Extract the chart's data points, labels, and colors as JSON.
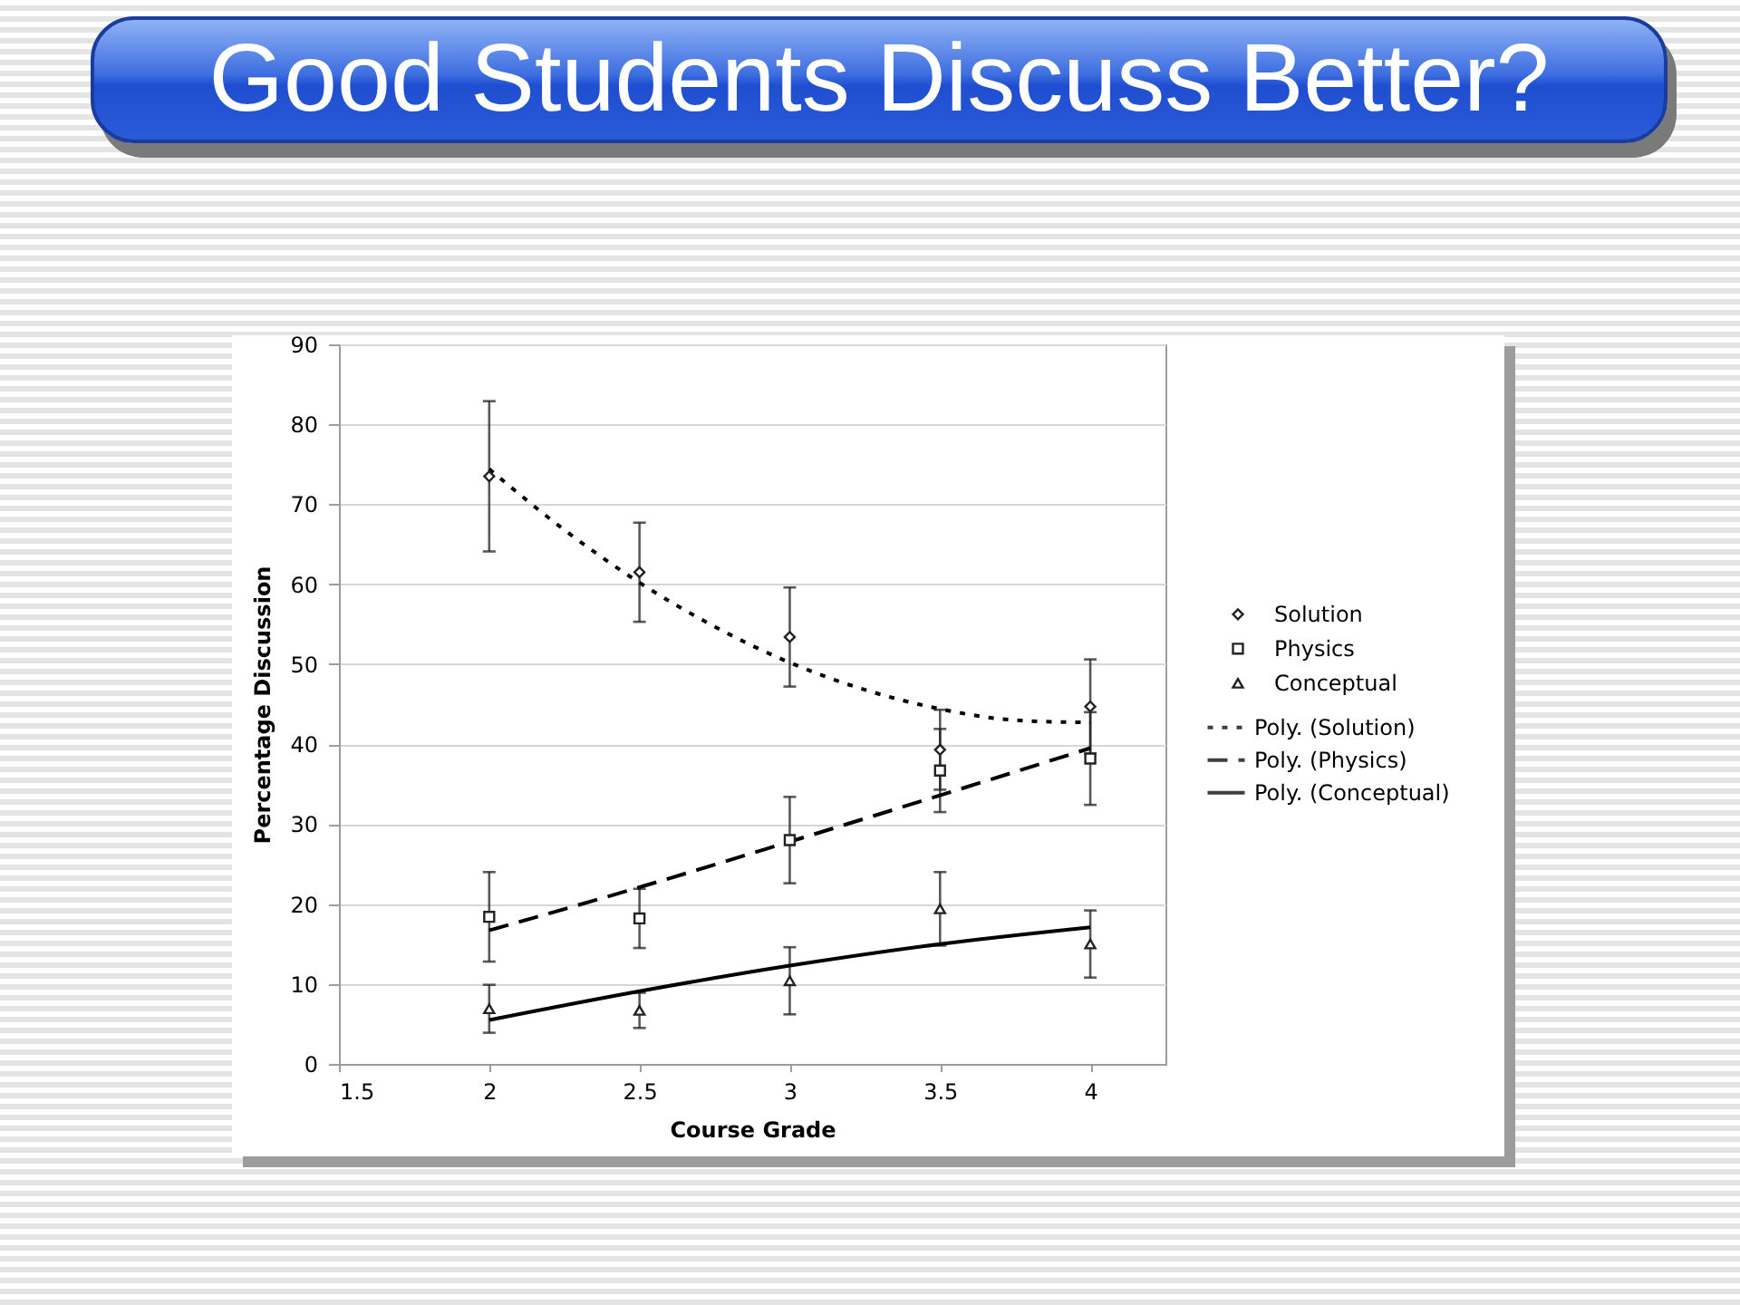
{
  "chart_data": {
    "type": "scatter",
    "title": "Good Students Discuss Better?",
    "xlabel": "Course Grade",
    "ylabel": "Percentage Discussion",
    "x": [
      2,
      2.5,
      3,
      3.5,
      4
    ],
    "series": [
      {
        "name": "Solution",
        "color": "#222222",
        "marker": "diamond",
        "values": [
          73.5,
          61.5,
          53.4,
          39.3,
          44.7
        ],
        "errors": [
          9.4,
          6.2,
          6.2,
          5.0,
          5.9
        ]
      },
      {
        "name": "Physics",
        "color": "#222222",
        "marker": "square",
        "values": [
          18.4,
          18.2,
          28.0,
          36.7,
          38.2
        ],
        "errors": [
          5.6,
          3.7,
          5.4,
          5.2,
          5.8
        ]
      },
      {
        "name": "Conceptual",
        "color": "#222222",
        "marker": "triangle",
        "values": [
          6.9,
          6.7,
          10.4,
          19.4,
          15.0
        ],
        "errors": [
          3.0,
          2.2,
          4.2,
          4.6,
          4.2
        ]
      },
      {
        "name": "Poly. (Solution)",
        "type": "line",
        "color": "#000000",
        "line_style": "dotted",
        "x": [
          2,
          2.25,
          2.5,
          2.75,
          3,
          3.25,
          3.5,
          3.75,
          4
        ],
        "values": [
          74.4,
          66.8,
          60.2,
          54.7,
          50.2,
          46.8,
          44.4,
          43.0,
          42.7
        ]
      },
      {
        "name": "Poly. (Physics)",
        "type": "line",
        "color": "#000000",
        "line_style": "dashed",
        "x": [
          2,
          2.5,
          3,
          3.5,
          4
        ],
        "values": [
          16.7,
          22.1,
          27.8,
          33.6,
          39.5
        ]
      },
      {
        "name": "Poly. (Conceptual)",
        "type": "line",
        "color": "#000000",
        "line_style": "solid",
        "x": [
          2,
          2.5,
          3,
          3.5,
          4
        ],
        "values": [
          5.5,
          9.1,
          12.3,
          15.0,
          17.1
        ]
      }
    ],
    "xlim": [
      1.5,
      4.25
    ],
    "xticks": [
      1.5,
      2,
      2.5,
      3,
      3.5,
      4
    ],
    "ylim": [
      0,
      90
    ],
    "yticks": [
      0,
      10,
      20,
      30,
      40,
      50,
      60,
      70,
      80,
      90
    ],
    "grid": "y",
    "legend": "right"
  }
}
